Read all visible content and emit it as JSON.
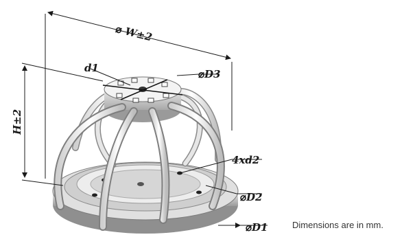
{
  "diagram": {
    "labels": {
      "width": "W±2",
      "height": "H±2",
      "d1": "d1",
      "d3": "D3",
      "d2_holes": "4xd2",
      "d2": "D2",
      "d1_base": "D1"
    },
    "note": "Dimensions are in mm."
  }
}
